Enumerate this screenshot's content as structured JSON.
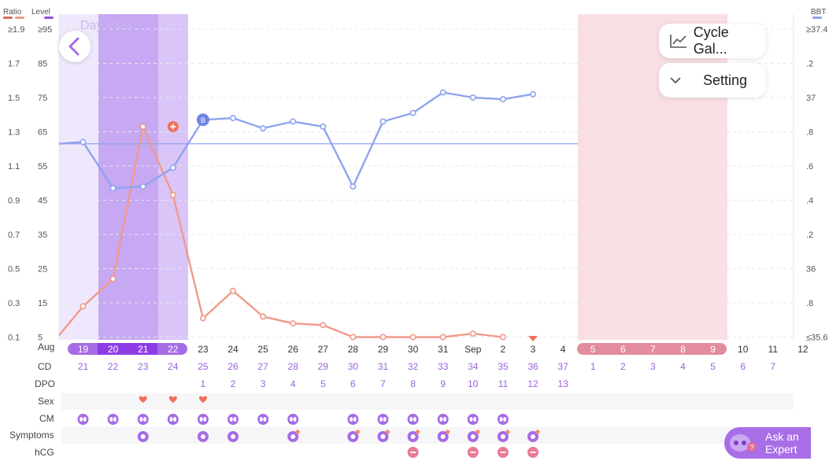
{
  "header": {
    "ratio_label": "Ratio",
    "level_label": "Level",
    "bbt_label": "BBT",
    "day_view": "Day View"
  },
  "buttons": {
    "cycle_gallery": "Cycle Gal...",
    "setting": "Setting",
    "ask_expert_line1": "Ask an",
    "ask_expert_line2": "Expert"
  },
  "axes": {
    "ratio_ticks": [
      "≥1.9",
      "1.7",
      "1.5",
      "1.3",
      "1.1",
      "0.9",
      "0.7",
      "0.5",
      "0.3",
      "0.1"
    ],
    "level_ticks": [
      "≥95",
      "85",
      "75",
      "65",
      "55",
      "45",
      "35",
      "25",
      "15",
      "5"
    ],
    "bbt_ticks": [
      "≥37.4",
      ".2",
      "37",
      ".8",
      ".6",
      ".4",
      ".2",
      "36",
      ".8",
      "≤35.6"
    ]
  },
  "dates": {
    "month_start": "Aug",
    "labels": [
      "19",
      "20",
      "21",
      "22",
      "23",
      "24",
      "25",
      "26",
      "27",
      "28",
      "29",
      "30",
      "31",
      "Sep",
      "2",
      "3",
      "4",
      "5",
      "6",
      "7",
      "8",
      "9",
      "10",
      "11",
      "12"
    ],
    "highlight_purple": [
      "19",
      "20",
      "21",
      "22"
    ],
    "highlight_pink": [
      "5",
      "6",
      "7",
      "8",
      "9"
    ]
  },
  "rows": {
    "cd_label": "CD",
    "cd": [
      "21",
      "22",
      "23",
      "24",
      "25",
      "26",
      "27",
      "28",
      "29",
      "30",
      "31",
      "32",
      "33",
      "34",
      "35",
      "36",
      "37",
      "1",
      "2",
      "3",
      "4",
      "5",
      "6",
      "7",
      ""
    ],
    "dpo_label": "DPO",
    "dpo": [
      "",
      "",
      "",
      "",
      "1",
      "2",
      "3",
      "4",
      "5",
      "6",
      "7",
      "8",
      "9",
      "10",
      "11",
      "12",
      "13",
      "",
      "",
      "",
      "",
      "",
      "",
      "",
      ""
    ],
    "sex_label": "Sex",
    "sex_days": [
      2,
      3,
      4
    ],
    "cm_label": "CM",
    "cm_days": [
      0,
      1,
      2,
      3,
      4,
      5,
      6,
      7,
      9,
      10,
      11,
      12,
      13,
      14
    ],
    "symptoms_label": "Symptoms",
    "symptoms_days": [
      2,
      4,
      5,
      7,
      9,
      10,
      11,
      12,
      13,
      14,
      15
    ],
    "hcg_label": "hCG",
    "hcg_days": [
      11,
      13,
      14,
      15
    ]
  },
  "colors": {
    "bbt": "#8fa3f0",
    "ratio": "#f09a88",
    "peak": "#f0705a",
    "purple_light": "#efe8fd",
    "purple_mid": "#d9c5f7",
    "purple_dark": "#c6a8f3",
    "purple_pill": "#a56ce6",
    "purple_pill_dark": "#8e3de6",
    "pink_band": "#f9dfe3",
    "pink_pill": "#e38ca0",
    "purple_text": "#9b63dc"
  },
  "chart_data": {
    "type": "line",
    "categories": [
      "Aug 18",
      "19",
      "20",
      "21",
      "22",
      "23",
      "24",
      "25",
      "26",
      "27",
      "28",
      "29",
      "30",
      "31",
      "Sep 1",
      "2",
      "3"
    ],
    "series": [
      {
        "name": "BBT",
        "values": [
          36.73,
          36.74,
          36.47,
          36.48,
          36.59,
          36.87,
          36.88,
          36.82,
          36.86,
          36.83,
          36.48,
          36.86,
          36.91,
          37.03,
          37.0,
          36.99,
          37.02
        ]
      },
      {
        "name": "Ratio",
        "values": [
          0.11,
          0.28,
          0.44,
          1.33,
          0.93,
          0.21,
          0.37,
          0.22,
          0.18,
          0.17,
          0.1,
          0.1,
          0.1,
          0.1,
          0.12,
          0.1,
          null
        ]
      }
    ],
    "coverline": 36.73,
    "ylim_bbt": [
      35.6,
      37.4
    ],
    "ylim_ratio": [
      0.1,
      1.9
    ],
    "marker_B_day": "23",
    "peak_day": "21"
  }
}
